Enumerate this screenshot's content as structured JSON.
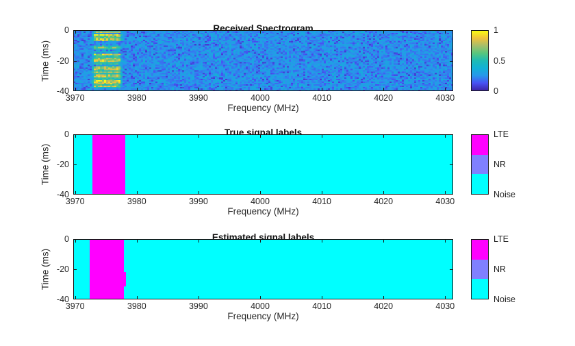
{
  "figure": {
    "background": "#ffffff",
    "frame_color": "#151515",
    "text_color": "#262626",
    "title_color": "#111111"
  },
  "chart_data": [
    {
      "type": "heatmap",
      "title": "Received Spectrogram",
      "xlabel": "Frequency (MHz)",
      "ylabel": "Time (ms)",
      "xlim": [
        3969.7,
        4031.3
      ],
      "ylim": [
        -40,
        0
      ],
      "xticks": [
        3970,
        3980,
        3990,
        4000,
        4010,
        4020,
        4030
      ],
      "yticks": [
        0,
        -20,
        -40
      ],
      "colormap": "parula",
      "colorbar": {
        "ticks": [
          {
            "value": 1,
            "label": "1"
          },
          {
            "value": 0.5,
            "label": "0.5"
          },
          {
            "value": 0,
            "label": "0"
          }
        ]
      },
      "noise_floor_range": [
        0.05,
        0.35
      ],
      "signal": {
        "label": "LTE",
        "f_start": 3972.7,
        "f_stop": 3977.7,
        "intensity_range": [
          0.4,
          1.0
        ],
        "pattern": "horizontal time-varying streaks over blue noise background"
      }
    },
    {
      "type": "heatmap",
      "title": "True signal labels",
      "xlabel": "Frequency (MHz)",
      "ylabel": "Time (ms)",
      "xlim": [
        3969.7,
        4031.3
      ],
      "ylim": [
        -40,
        0
      ],
      "xticks": [
        3970,
        3980,
        3990,
        4000,
        4010,
        4020,
        4030
      ],
      "yticks": [
        0,
        -20,
        -40
      ],
      "categories": [
        "LTE",
        "NR",
        "Noise"
      ],
      "colors": {
        "LTE": "#ff00ff",
        "NR": "#8080ff",
        "Noise": "#00ffff"
      },
      "background_label": "Noise",
      "bands": [
        {
          "label": "LTE",
          "f_start": 3972.8,
          "f_stop": 3978.1,
          "t_start": 0,
          "t_stop": -40
        }
      ]
    },
    {
      "type": "heatmap",
      "title": "Estimated signal labels",
      "xlabel": "Frequency (MHz)",
      "ylabel": "Time (ms)",
      "xlim": [
        3969.7,
        4031.3
      ],
      "ylim": [
        -40,
        0
      ],
      "xticks": [
        3970,
        3980,
        3990,
        4000,
        4010,
        4020,
        4030
      ],
      "yticks": [
        0,
        -20,
        -40
      ],
      "categories": [
        "LTE",
        "NR",
        "Noise"
      ],
      "colors": {
        "LTE": "#ff00ff",
        "NR": "#8080ff",
        "Noise": "#00ffff"
      },
      "background_label": "Noise",
      "bands": [
        {
          "label": "LTE",
          "f_start": 3972.4,
          "f_stop": 3977.9,
          "t_start": 0,
          "t_stop": -40,
          "notch": {
            "f_stop": 3978.3,
            "t_start": -21.8,
            "t_stop": -31.4
          }
        }
      ]
    }
  ]
}
